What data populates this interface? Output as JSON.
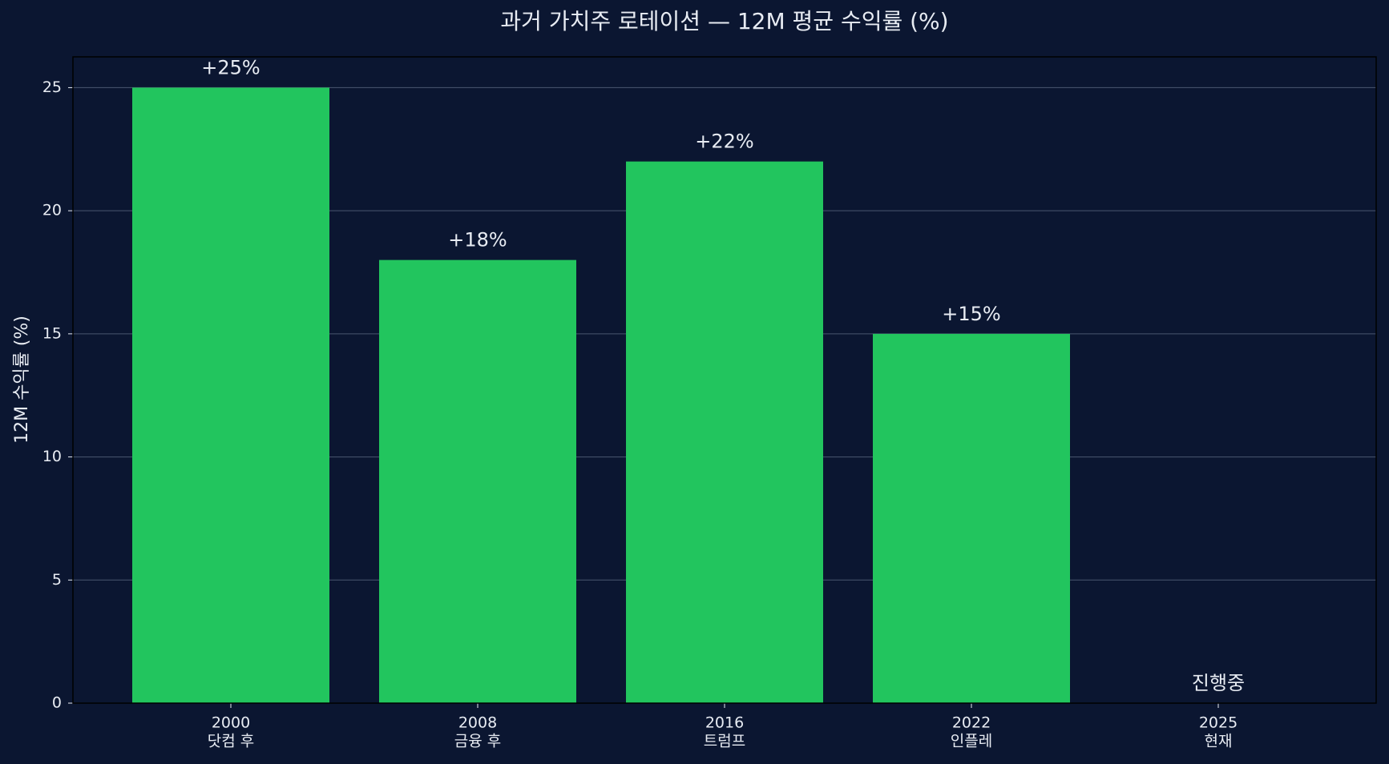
{
  "chart_data": {
    "type": "bar",
    "title": "과거 가치주 로테이션 — 12M 평균 수익률 (%)",
    "y_label": "12M 수익률 (%)",
    "categories": [
      "2000",
      "2008",
      "2016",
      "2022",
      "2025"
    ],
    "category_notes": [
      "닷컴 후",
      "금융 후",
      "트럼프",
      "인플레",
      "현재"
    ],
    "values": [
      25,
      18,
      22,
      15,
      0
    ],
    "value_labels": [
      "+25%",
      "+18%",
      "+22%",
      "+15%",
      "진행중"
    ],
    "color": "#22c55e",
    "ylim": [
      0,
      26.25
    ],
    "yticks": [
      0,
      5,
      10,
      15,
      20,
      25
    ],
    "grid": true
  }
}
